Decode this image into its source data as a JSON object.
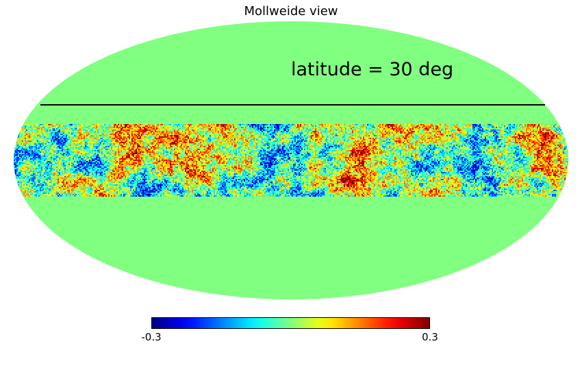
{
  "chart_data": {
    "type": "heatmap",
    "projection": "Mollweide",
    "title": "Mollweide view",
    "annotation": "latitude = 30 deg",
    "reference_line_latitude_deg": 30,
    "data_band_latitude_deg": [
      -13,
      13
    ],
    "masked_value": 0,
    "colormap": "jet",
    "colorbar": {
      "vmin": -0.3,
      "vmax": 0.3,
      "tick_labels": [
        "-0.3",
        "0.3"
      ]
    },
    "colors": {
      "background_masked": "#80ff80",
      "line": "#000000"
    }
  }
}
